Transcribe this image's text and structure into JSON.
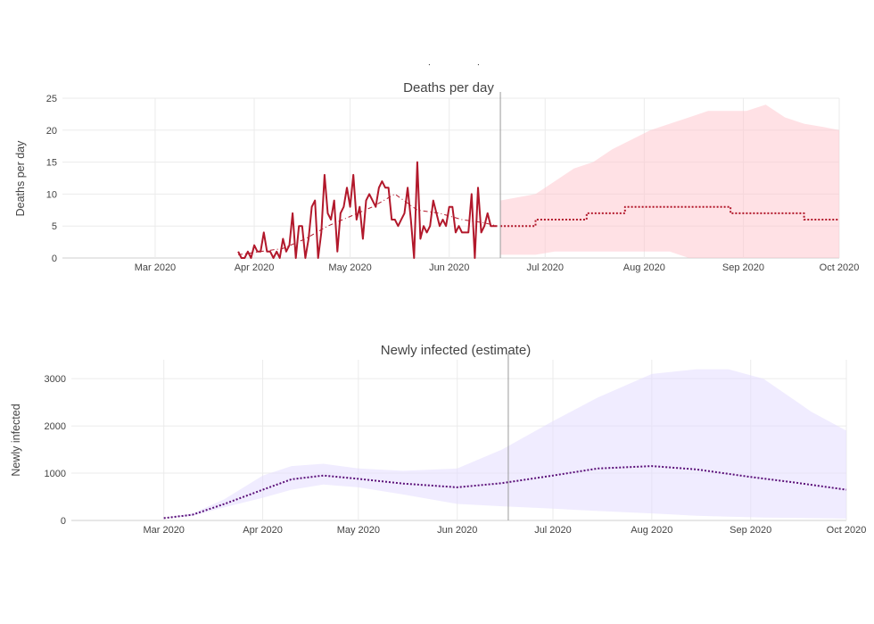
{
  "top_marks": [
    ".",
    "."
  ],
  "colors": {
    "deaths_line": "#b2182b",
    "deaths_band": "#ffc4cc",
    "infected_line": "#5a0f78",
    "infected_band": "#e4dcff",
    "divider": "#9a9a9a"
  },
  "chart_data": [
    {
      "type": "line",
      "title": "Deaths per day",
      "ylabel": "Deaths per day",
      "xlabel": "",
      "x_range": [
        "2020-02-01",
        "2020-10-01"
      ],
      "ylim": [
        0,
        25
      ],
      "yticks": [
        0,
        5,
        10,
        15,
        20,
        25
      ],
      "xticks": [
        {
          "date": "2020-03-01",
          "label": "Mar 2020"
        },
        {
          "date": "2020-04-01",
          "label": "Apr 2020"
        },
        {
          "date": "2020-05-01",
          "label": "May 2020"
        },
        {
          "date": "2020-06-01",
          "label": "Jun 2020"
        },
        {
          "date": "2020-07-01",
          "label": "Jul 2020"
        },
        {
          "date": "2020-08-01",
          "label": "Aug 2020"
        },
        {
          "date": "2020-09-01",
          "label": "Sep 2020"
        },
        {
          "date": "2020-10-01",
          "label": "Oct 2020"
        }
      ],
      "grid": true,
      "divider_date": "2020-06-17",
      "series": [
        {
          "style": "solid",
          "x": [
            "2020-03-27",
            "2020-03-28",
            "2020-03-29",
            "2020-03-30",
            "2020-03-31",
            "2020-04-01",
            "2020-04-02",
            "2020-04-03",
            "2020-04-04",
            "2020-04-05",
            "2020-04-06",
            "2020-04-07",
            "2020-04-08",
            "2020-04-09",
            "2020-04-10",
            "2020-04-11",
            "2020-04-12",
            "2020-04-13",
            "2020-04-14",
            "2020-04-15",
            "2020-04-16",
            "2020-04-17",
            "2020-04-18",
            "2020-04-19",
            "2020-04-20",
            "2020-04-21",
            "2020-04-22",
            "2020-04-23",
            "2020-04-24",
            "2020-04-25",
            "2020-04-26",
            "2020-04-27",
            "2020-04-28",
            "2020-04-29",
            "2020-04-30",
            "2020-05-01",
            "2020-05-02",
            "2020-05-03",
            "2020-05-04",
            "2020-05-05",
            "2020-05-06",
            "2020-05-07",
            "2020-05-08",
            "2020-05-09",
            "2020-05-10",
            "2020-05-11",
            "2020-05-12",
            "2020-05-13",
            "2020-05-14",
            "2020-05-15",
            "2020-05-16",
            "2020-05-17",
            "2020-05-18",
            "2020-05-19",
            "2020-05-20",
            "2020-05-21",
            "2020-05-22",
            "2020-05-23",
            "2020-05-24",
            "2020-05-25",
            "2020-05-26",
            "2020-05-27",
            "2020-05-28",
            "2020-05-29",
            "2020-05-30",
            "2020-05-31",
            "2020-06-01",
            "2020-06-02",
            "2020-06-03",
            "2020-06-04",
            "2020-06-05",
            "2020-06-06",
            "2020-06-07",
            "2020-06-08",
            "2020-06-09",
            "2020-06-10",
            "2020-06-11",
            "2020-06-12",
            "2020-06-13",
            "2020-06-14",
            "2020-06-15",
            "2020-06-16"
          ],
          "y": [
            1,
            0,
            0,
            1,
            0,
            2,
            1,
            1,
            4,
            1,
            1,
            0,
            1,
            0,
            3,
            1,
            2,
            7,
            0,
            5,
            5,
            0,
            3,
            8,
            9,
            0,
            4,
            13,
            7,
            6,
            9,
            1,
            7,
            8,
            11,
            8,
            13,
            6,
            8,
            3,
            9,
            10,
            9,
            8,
            11,
            12,
            11,
            11,
            6,
            6,
            5,
            6,
            7,
            11,
            6,
            0,
            15,
            3,
            5,
            4,
            5,
            9,
            7,
            5,
            6,
            5,
            8,
            8,
            4,
            5,
            4,
            4,
            4,
            10,
            0,
            11,
            4,
            5,
            7,
            5,
            5,
            5
          ]
        },
        {
          "style": "dashdot",
          "x": [
            "2020-03-27",
            "2020-04-03",
            "2020-04-10",
            "2020-04-17",
            "2020-04-24",
            "2020-05-01",
            "2020-05-08",
            "2020-05-15",
            "2020-05-22",
            "2020-05-29",
            "2020-06-05",
            "2020-06-12",
            "2020-06-16"
          ],
          "y": [
            0.5,
            1,
            1.5,
            3,
            5,
            6.5,
            8,
            10,
            7.5,
            7,
            6,
            5.5,
            5
          ]
        },
        {
          "style": "dotted",
          "x": [
            "2020-06-17",
            "2020-06-28",
            "2020-06-28",
            "2020-07-14",
            "2020-07-14",
            "2020-07-26",
            "2020-07-26",
            "2020-08-28",
            "2020-08-28",
            "2020-09-20",
            "2020-09-20",
            "2020-10-01"
          ],
          "y": [
            5,
            5,
            6,
            6,
            7,
            7,
            8,
            8,
            7,
            7,
            6,
            6
          ]
        }
      ],
      "band": {
        "x": [
          "2020-06-17",
          "2020-06-28",
          "2020-07-04",
          "2020-07-10",
          "2020-07-16",
          "2020-07-22",
          "2020-07-28",
          "2020-08-03",
          "2020-08-09",
          "2020-08-15",
          "2020-08-21",
          "2020-08-27",
          "2020-09-02",
          "2020-09-08",
          "2020-09-14",
          "2020-09-20",
          "2020-09-26",
          "2020-10-01"
        ],
        "upper": [
          9,
          10,
          12,
          14,
          15,
          17,
          18.5,
          20,
          21,
          22,
          23,
          23,
          23,
          24,
          22,
          21,
          20.5,
          20
        ],
        "lower": [
          0.5,
          0.5,
          1,
          1,
          1,
          1,
          1,
          1,
          1,
          0,
          0,
          0,
          0,
          0,
          0,
          0,
          0,
          0
        ]
      }
    },
    {
      "type": "line",
      "title": "Newly infected (estimate)",
      "ylabel": "Newly infected",
      "xlabel": "",
      "x_range": [
        "2020-02-01",
        "2020-10-01"
      ],
      "ylim": [
        0,
        3400
      ],
      "yticks": [
        0,
        1000,
        2000,
        3000
      ],
      "xticks": [
        {
          "date": "2020-03-01",
          "label": "Mar 2020"
        },
        {
          "date": "2020-04-01",
          "label": "Apr 2020"
        },
        {
          "date": "2020-05-01",
          "label": "May 2020"
        },
        {
          "date": "2020-06-01",
          "label": "Jun 2020"
        },
        {
          "date": "2020-07-01",
          "label": "Jul 2020"
        },
        {
          "date": "2020-08-01",
          "label": "Aug 2020"
        },
        {
          "date": "2020-09-01",
          "label": "Sep 2020"
        },
        {
          "date": "2020-10-01",
          "label": "Oct 2020"
        }
      ],
      "grid": true,
      "divider_date": "2020-06-17",
      "series": [
        {
          "style": "dotted",
          "x": [
            "2020-03-01",
            "2020-03-10",
            "2020-03-20",
            "2020-04-01",
            "2020-04-10",
            "2020-04-20",
            "2020-05-01",
            "2020-05-15",
            "2020-06-01",
            "2020-06-15",
            "2020-07-01",
            "2020-07-15",
            "2020-08-01",
            "2020-08-15",
            "2020-09-01",
            "2020-09-15",
            "2020-10-01"
          ],
          "y": [
            50,
            120,
            350,
            650,
            870,
            950,
            880,
            780,
            700,
            790,
            950,
            1100,
            1150,
            1080,
            920,
            800,
            650
          ]
        }
      ],
      "band": {
        "x": [
          "2020-03-01",
          "2020-03-10",
          "2020-03-20",
          "2020-04-01",
          "2020-04-10",
          "2020-04-20",
          "2020-05-01",
          "2020-05-15",
          "2020-06-01",
          "2020-06-15",
          "2020-07-01",
          "2020-07-15",
          "2020-08-01",
          "2020-08-15",
          "2020-08-25",
          "2020-09-05",
          "2020-09-20",
          "2020-10-01"
        ],
        "upper": [
          50,
          150,
          450,
          950,
          1150,
          1200,
          1100,
          1050,
          1100,
          1500,
          2100,
          2600,
          3100,
          3200,
          3200,
          3000,
          2300,
          1900
        ],
        "lower": [
          50,
          100,
          280,
          480,
          650,
          760,
          700,
          550,
          350,
          300,
          250,
          200,
          150,
          100,
          80,
          60,
          50,
          40
        ]
      }
    }
  ]
}
